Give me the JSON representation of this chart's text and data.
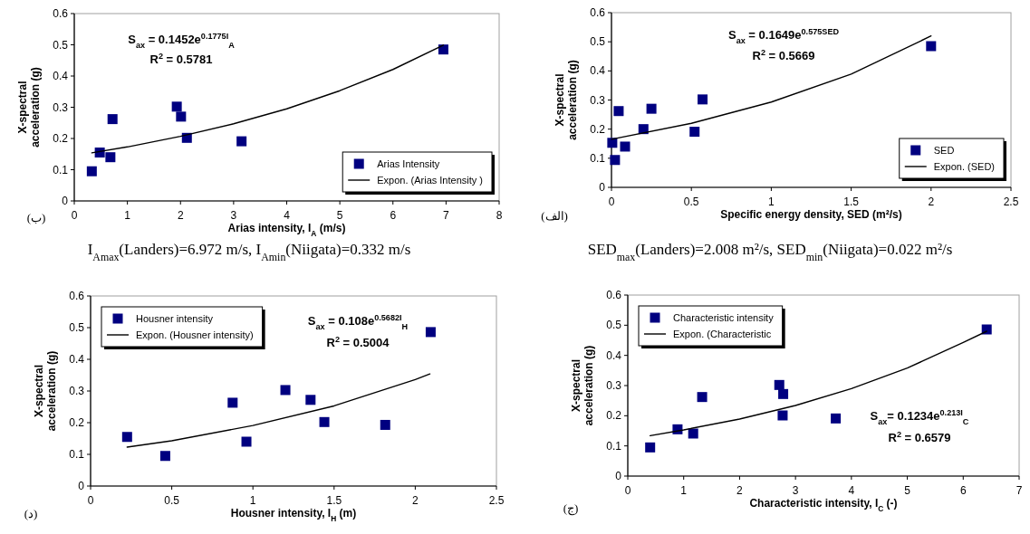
{
  "chart_data": [
    {
      "type": "scatter",
      "xlabel": "Arias intensity, I$_{A}$ (m/s)",
      "ylabel": "X-spectral\nacceleration (g)",
      "xlim": [
        0,
        8
      ],
      "xticks": [
        0,
        1,
        2,
        3,
        4,
        5,
        6,
        7,
        8
      ],
      "ylim": [
        0,
        0.6
      ],
      "yticks": [
        0,
        0.1,
        0.2,
        0.3,
        0.4,
        0.5,
        0.6
      ],
      "legend": "bottom right",
      "annotations": [
        "(ب)",
        "S$_{ax}$ = 0.1452e$^{0.1775I}$$_{A}$",
        "R$^{2}$ = 0.5781",
        "I$_{Amax}$(Landers)=6.972 m/s,   I$_{Amin}$(Niigata)=0.332 m/s"
      ],
      "series": [
        {
          "name": "Arias Intensity",
          "type": "scatter",
          "marker": "square",
          "color": "#000080",
          "x": [
            0.33,
            0.48,
            0.68,
            0.72,
            1.93,
            2.01,
            2.12,
            3.15,
            6.95
          ],
          "values": [
            0.095,
            0.155,
            0.14,
            0.262,
            0.302,
            0.27,
            0.202,
            0.191,
            0.485
          ]
        },
        {
          "name": "Expon. (Arias Intensity )",
          "type": "line",
          "color": "#000000",
          "x": [
            0.33,
            1,
            2,
            3,
            4,
            5,
            6,
            6.95
          ],
          "values": [
            0.154,
            0.173,
            0.207,
            0.247,
            0.295,
            0.353,
            0.421,
            0.499
          ]
        }
      ]
    },
    {
      "type": "scatter",
      "xlabel": "Specific energy density, SED (m²/s)",
      "ylabel": "X-spectral\nacceleration (g)",
      "xlim": [
        0,
        2.5
      ],
      "xticks": [
        0,
        0.5,
        1,
        1.5,
        2,
        2.5
      ],
      "ylim": [
        0,
        0.6
      ],
      "yticks": [
        0,
        0.1,
        0.2,
        0.3,
        0.4,
        0.5,
        0.6
      ],
      "legend": "bottom right",
      "annotations": [
        "(الف)",
        "S$_{ax}$ = 0.1649e$^{0.575SED}$",
        "R$^{2}$ = 0.5669",
        "SED$_{max}$(Landers)=2.008 m²/s, SED$_{min}$(Niigata)=0.022 m²/s"
      ],
      "series": [
        {
          "name": "SED",
          "type": "scatter",
          "marker": "square",
          "color": "#000080",
          "x": [
            0.005,
            0.022,
            0.045,
            0.085,
            0.2,
            0.25,
            0.52,
            0.57,
            2.0
          ],
          "values": [
            0.153,
            0.094,
            0.262,
            0.14,
            0.2,
            0.27,
            0.191,
            0.302,
            0.485
          ]
        },
        {
          "name": "Expon. (SED)",
          "type": "line",
          "color": "#000000",
          "x": [
            0,
            0.5,
            1,
            1.5,
            2
          ],
          "values": [
            0.165,
            0.22,
            0.293,
            0.389,
            0.52
          ]
        }
      ]
    },
    {
      "type": "scatter",
      "xlabel": "Housner intensity, I$_{H}$ (m)",
      "ylabel": "X-spectral\nacceleration (g)",
      "xlim": [
        0,
        2.5
      ],
      "xticks": [
        0,
        0.5,
        1,
        1.5,
        2,
        2.5
      ],
      "ylim": [
        0,
        0.6
      ],
      "yticks": [
        0,
        0.1,
        0.2,
        0.3,
        0.4,
        0.5,
        0.6
      ],
      "legend": "top left",
      "annotations": [
        "(د)",
        "S$_{ax}$ = 0.108e$^{0.5682I}$$_{H}$",
        "R$^{2}$ = 0.5004"
      ],
      "series": [
        {
          "name": "Housner intensity",
          "type": "scatter",
          "marker": "square",
          "color": "#000080",
          "x": [
            0.225,
            0.46,
            0.875,
            0.96,
            1.2,
            1.355,
            1.44,
            1.815,
            2.095
          ],
          "values": [
            0.155,
            0.095,
            0.263,
            0.14,
            0.303,
            0.272,
            0.202,
            0.193,
            0.486
          ]
        },
        {
          "name": "Expon. (Housner intensity)",
          "type": "line",
          "color": "#000000",
          "x": [
            0.225,
            0.5,
            1,
            1.5,
            2,
            2.09
          ],
          "values": [
            0.123,
            0.143,
            0.191,
            0.253,
            0.336,
            0.354
          ]
        }
      ]
    },
    {
      "type": "scatter",
      "xlabel": "Characteristic intensity, I$_{C}$ (-)",
      "ylabel": "X-spectral\nacceleration (g)",
      "xlim": [
        0,
        7
      ],
      "xticks": [
        0,
        1,
        2,
        3,
        4,
        5,
        6,
        7
      ],
      "ylim": [
        0,
        0.6
      ],
      "yticks": [
        0,
        0.1,
        0.2,
        0.3,
        0.4,
        0.5,
        0.6
      ],
      "legend": "top left",
      "annotations": [
        "(ج)",
        "S$_{ax}$= 0.1234e$^{0.213I}$$_{C}$",
        "R$^{2}$ = 0.6579"
      ],
      "series": [
        {
          "name": "Characteristic intensity",
          "type": "scatter",
          "marker": "square",
          "color": "#000080",
          "x": [
            0.4,
            0.89,
            1.17,
            1.33,
            2.71,
            2.78,
            2.77,
            3.72,
            6.42
          ],
          "values": [
            0.095,
            0.155,
            0.141,
            0.262,
            0.302,
            0.272,
            0.201,
            0.191,
            0.486
          ]
        },
        {
          "name": "Expon. (Characteristic",
          "type": "line",
          "color": "#000000",
          "x": [
            0.4,
            1,
            2,
            3,
            4,
            5,
            6,
            6.42
          ],
          "values": [
            0.134,
            0.153,
            0.189,
            0.234,
            0.29,
            0.358,
            0.443,
            0.48
          ]
        }
      ]
    }
  ]
}
